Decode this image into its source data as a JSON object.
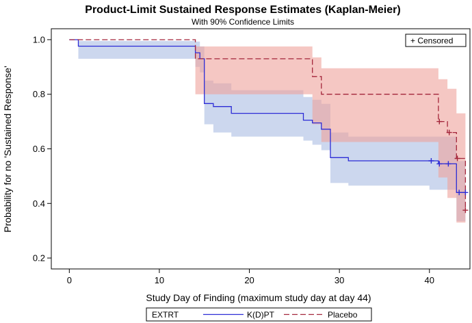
{
  "chart_data": {
    "type": "line",
    "title": "Product-Limit Sustained Response Estimates (Kaplan-Meier)",
    "subtitle": "With 90% Confidence Limits",
    "xlabel": "Study Day of Finding (maximum study day at day 44)",
    "ylabel": "Probability for no 'Sustained Response'",
    "xlim": [
      -2,
      44.5
    ],
    "ylim": [
      0.16,
      1.04
    ],
    "x_ticks": [
      0,
      10,
      20,
      30,
      40
    ],
    "y_ticks": [
      0.2,
      0.4,
      0.6,
      0.8,
      1.0
    ],
    "y_tick_labels": [
      "0.2",
      "0.4",
      "0.6",
      "0.8",
      "1.0"
    ],
    "censored_legend": "+ Censored",
    "legend_title": "EXTRT",
    "colors": {
      "kdpt_line": "#2b2bd6",
      "kdpt_band": "#aabde2",
      "placebo_line": "#a3253a",
      "placebo_band": "#eea19b"
    },
    "series": [
      {
        "name": "K(D)PT",
        "style": "solid",
        "steps": [
          [
            0,
            1.0
          ],
          [
            1,
            0.976
          ],
          [
            14,
            0.952
          ],
          [
            14.5,
            0.93
          ],
          [
            15,
            0.766
          ],
          [
            16,
            0.755
          ],
          [
            18,
            0.73
          ],
          [
            26,
            0.705
          ],
          [
            27,
            0.695
          ],
          [
            28,
            0.672
          ],
          [
            29,
            0.568
          ],
          [
            31,
            0.556
          ],
          [
            40,
            0.556
          ],
          [
            41,
            0.545
          ],
          [
            43,
            0.44
          ],
          [
            44,
            0.44
          ]
        ],
        "band": [
          [
            0,
            1.0,
            1.0
          ],
          [
            1,
            0.93,
            0.995
          ],
          [
            14,
            0.9,
            0.993
          ],
          [
            14.5,
            0.88,
            0.975
          ],
          [
            15,
            0.69,
            0.85
          ],
          [
            16,
            0.66,
            0.84
          ],
          [
            18,
            0.645,
            0.815
          ],
          [
            26,
            0.63,
            0.79
          ],
          [
            27,
            0.615,
            0.78
          ],
          [
            28,
            0.595,
            0.765
          ],
          [
            29,
            0.475,
            0.66
          ],
          [
            31,
            0.465,
            0.645
          ],
          [
            40,
            0.45,
            0.645
          ],
          [
            43,
            0.335,
            0.555
          ],
          [
            44,
            0.335,
            0.555
          ]
        ],
        "censored": [
          [
            40.2,
            0.556
          ],
          [
            41.1,
            0.545
          ],
          [
            42.1,
            0.545
          ],
          [
            43.3,
            0.44
          ],
          [
            44.0,
            0.44
          ]
        ]
      },
      {
        "name": "Placebo",
        "style": "dashed",
        "steps": [
          [
            0,
            1.0
          ],
          [
            14,
            0.93
          ],
          [
            27,
            0.865
          ],
          [
            28,
            0.8
          ],
          [
            41,
            0.7
          ],
          [
            42,
            0.66
          ],
          [
            43,
            0.565
          ],
          [
            44,
            0.375
          ]
        ],
        "band": [
          [
            0,
            1.0,
            1.0
          ],
          [
            14,
            0.8,
            0.975
          ],
          [
            27,
            0.69,
            0.935
          ],
          [
            28,
            0.625,
            0.895
          ],
          [
            41,
            0.495,
            0.855
          ],
          [
            42,
            0.42,
            0.82
          ],
          [
            43,
            0.33,
            0.73
          ],
          [
            44,
            0.18,
            0.565
          ]
        ],
        "censored": [
          [
            41.1,
            0.7
          ],
          [
            42.2,
            0.66
          ],
          [
            43.1,
            0.565
          ],
          [
            44.0,
            0.375
          ]
        ]
      }
    ]
  }
}
